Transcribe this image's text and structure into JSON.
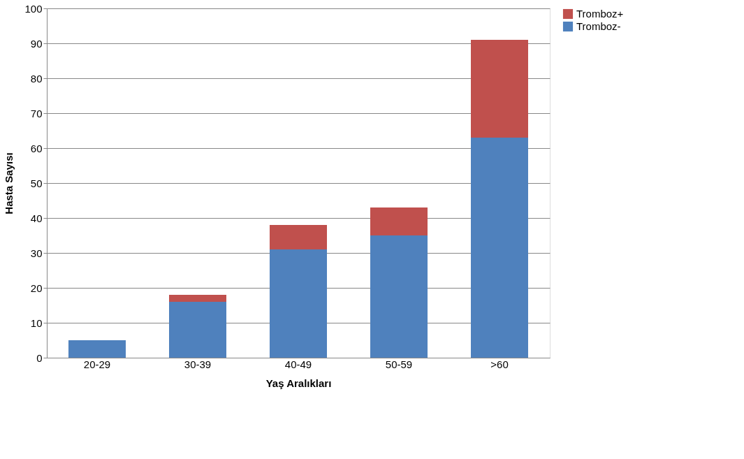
{
  "chart_data": {
    "type": "bar",
    "xlabel": "Yaş Aralıkları",
    "ylabel": "Hasta Sayısı",
    "categories": [
      "20-29",
      "30-39",
      "40-49",
      "50-59",
      ">60"
    ],
    "stacked": true,
    "series": [
      {
        "name": "Tromboz-",
        "color": "#4f81bd",
        "values": [
          5,
          16,
          31,
          35,
          63
        ]
      },
      {
        "name": "Tromboz+",
        "color": "#c0504d",
        "values": [
          0,
          2,
          7,
          8,
          28
        ]
      }
    ],
    "ylim": [
      0,
      100
    ],
    "yticks": [
      0,
      10,
      20,
      30,
      40,
      50,
      60,
      70,
      80,
      90,
      100
    ],
    "grid": "y",
    "legend": "right"
  }
}
